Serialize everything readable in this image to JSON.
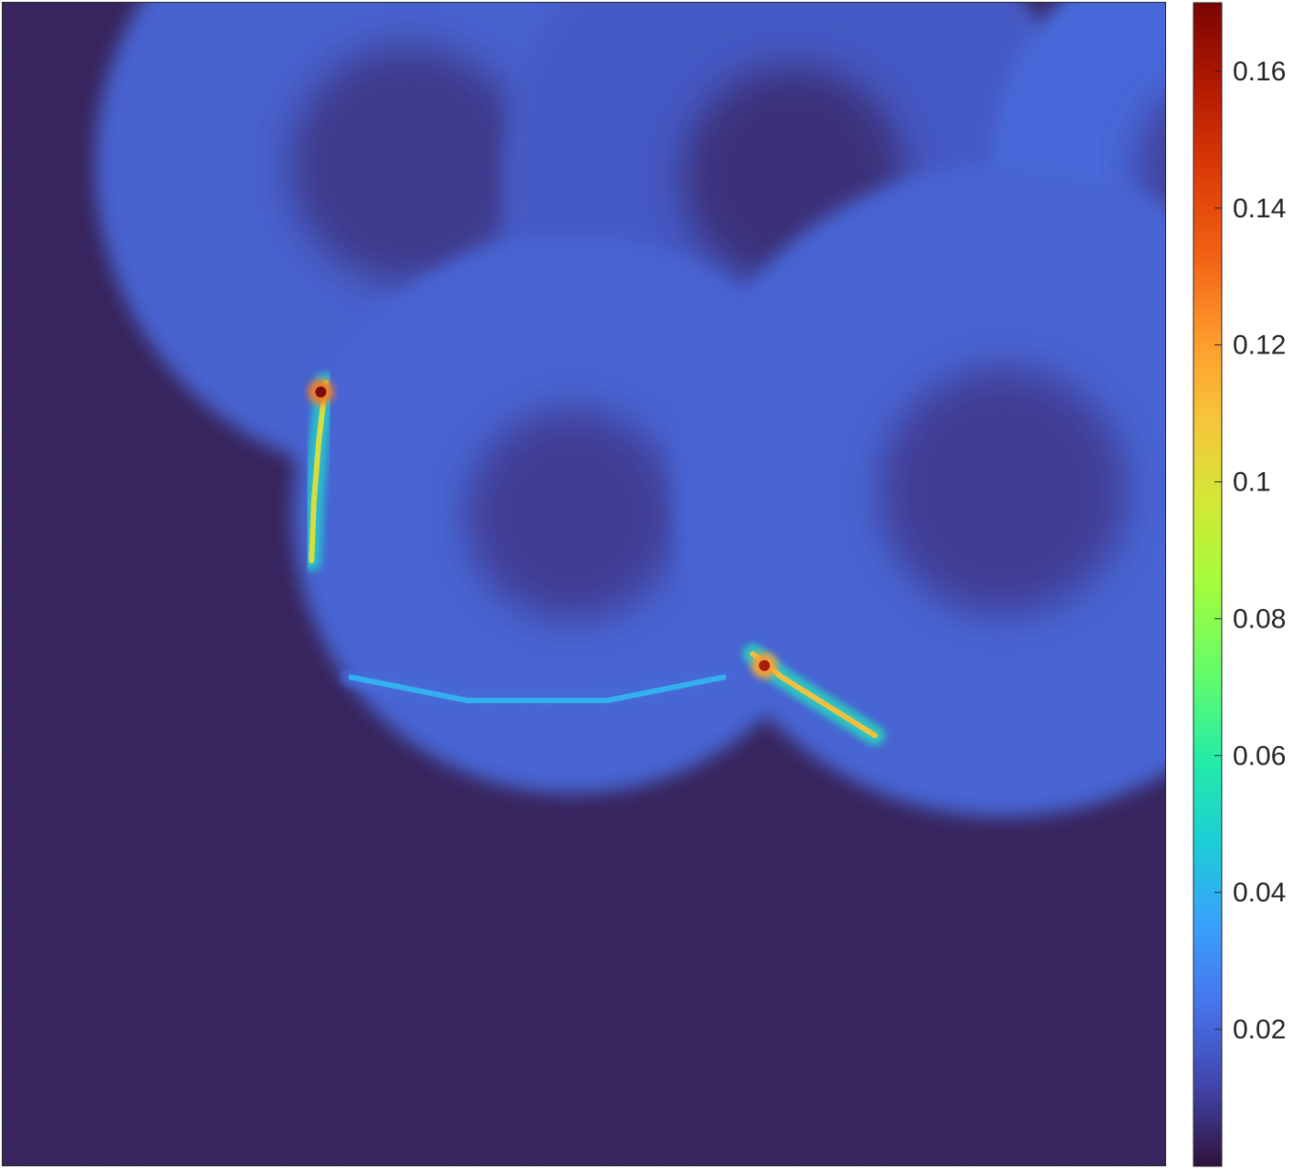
{
  "chart_data": {
    "type": "heatmap",
    "title": "",
    "xlabel": "",
    "ylabel": "",
    "colormap": "turbo",
    "color_range": [
      0.0,
      0.17
    ],
    "colorbar": {
      "position": "right",
      "ticks": [
        {
          "value": 0.16,
          "label": "0.16"
        },
        {
          "value": 0.14,
          "label": "0.14"
        },
        {
          "value": 0.12,
          "label": "0.12"
        },
        {
          "value": 0.1,
          "label": "0.1"
        },
        {
          "value": 0.08,
          "label": "0.08"
        },
        {
          "value": 0.06,
          "label": "0.06"
        },
        {
          "value": 0.04,
          "label": "0.04"
        },
        {
          "value": 0.02,
          "label": "0.02"
        }
      ]
    },
    "background_value": 0.003,
    "features": {
      "cells": [
        {
          "name": "cell-top-left",
          "cx": 0.35,
          "cy": 0.14,
          "r": 0.27,
          "value": 0.012
        },
        {
          "name": "cell-top-middle",
          "cx": 0.68,
          "cy": 0.15,
          "r": 0.25,
          "value": 0.01
        },
        {
          "name": "cell-top-right",
          "cx": 1.05,
          "cy": 0.14,
          "r": 0.2,
          "value": 0.014
        },
        {
          "name": "cell-center",
          "cx": 0.49,
          "cy": 0.44,
          "r": 0.24,
          "value": 0.013
        },
        {
          "name": "cell-right",
          "cx": 0.86,
          "cy": 0.42,
          "r": 0.28,
          "value": 0.013
        }
      ],
      "hotspots": [
        {
          "name": "hotspot-left-ridge",
          "x": 0.274,
          "y": 0.335,
          "value": 0.17
        },
        {
          "name": "hotspot-junction",
          "x": 0.655,
          "y": 0.57,
          "value": 0.16
        }
      ],
      "bright_edges": [
        {
          "name": "left-ridge",
          "points": [
            [
              0.278,
              0.327
            ],
            [
              0.272,
              0.38
            ],
            [
              0.268,
              0.43
            ],
            [
              0.266,
              0.48
            ]
          ],
          "value": 0.1
        },
        {
          "name": "lower-right-ridge",
          "points": [
            [
              0.645,
              0.56
            ],
            [
              0.67,
              0.58
            ],
            [
              0.71,
              0.605
            ],
            [
              0.75,
              0.63
            ]
          ],
          "value": 0.11
        },
        {
          "name": "lower-left-rim",
          "points": [
            [
              0.3,
              0.58
            ],
            [
              0.4,
              0.6
            ],
            [
              0.52,
              0.6
            ],
            [
              0.62,
              0.58
            ]
          ],
          "value": 0.04
        }
      ]
    }
  }
}
